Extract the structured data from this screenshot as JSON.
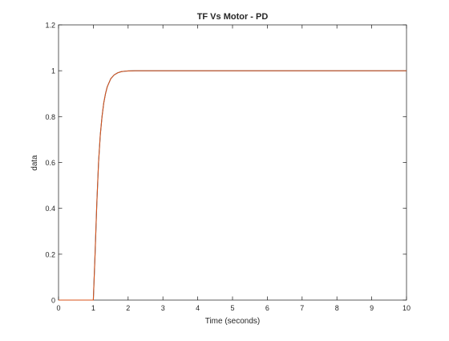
{
  "chart_data": {
    "type": "line",
    "title": "TF Vs Motor - PD",
    "xlabel": "Time (seconds)",
    "ylabel": "data",
    "xlim": [
      0,
      10
    ],
    "ylim": [
      0,
      1.2
    ],
    "xticks": [
      0,
      1,
      2,
      3,
      4,
      5,
      6,
      7,
      8,
      9,
      10
    ],
    "yticks": [
      0,
      0.2,
      0.4,
      0.6,
      0.8,
      1,
      1.2
    ],
    "xtick_labels": [
      "0",
      "1",
      "2",
      "3",
      "4",
      "5",
      "6",
      "7",
      "8",
      "9",
      "10"
    ],
    "ytick_labels": [
      "0",
      "0.2",
      "0.4",
      "0.6",
      "0.8",
      "1",
      "1.2"
    ],
    "grid": false,
    "series": [
      {
        "color": "#0072bd",
        "x": [
          0,
          1,
          1.05,
          1.1,
          1.15,
          1.2,
          1.25,
          1.3,
          1.35,
          1.4,
          1.5,
          1.6,
          1.7,
          1.8,
          1.9,
          2.0,
          2.2,
          2.5,
          3,
          4,
          5,
          6,
          7,
          8,
          9,
          10
        ],
        "y": [
          0,
          0,
          0.2,
          0.42,
          0.6,
          0.72,
          0.8,
          0.86,
          0.9,
          0.93,
          0.965,
          0.982,
          0.991,
          0.996,
          0.998,
          0.999,
          1,
          1,
          1,
          1,
          1,
          1,
          1,
          1,
          1,
          1
        ]
      },
      {
        "color": "#d95319",
        "x": [
          0,
          1,
          1.05,
          1.1,
          1.15,
          1.2,
          1.25,
          1.3,
          1.35,
          1.4,
          1.5,
          1.6,
          1.7,
          1.8,
          1.9,
          2.0,
          2.2,
          2.5,
          3,
          4,
          5,
          6,
          7,
          8,
          9,
          10
        ],
        "y": [
          0,
          0,
          0.2,
          0.42,
          0.6,
          0.72,
          0.8,
          0.86,
          0.9,
          0.93,
          0.965,
          0.982,
          0.991,
          0.996,
          0.998,
          0.999,
          1,
          1,
          1,
          1,
          1,
          1,
          1,
          1,
          1,
          1
        ]
      }
    ]
  }
}
